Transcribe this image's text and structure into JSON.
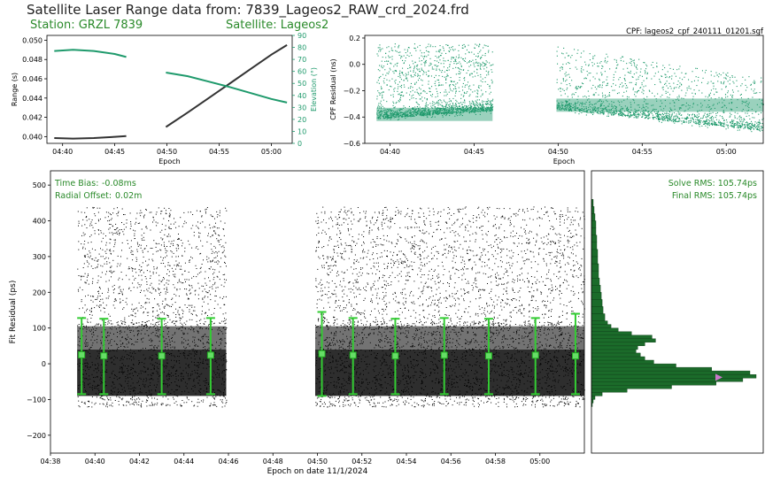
{
  "header": {
    "title": "Satellite Laser Range data from: 7839_Lageos2_RAW_crd_2024.frd",
    "station": "Station: GRZL 7839",
    "satellite": "Satellite: Lageos2",
    "cpf_file": "CPF: lageos2_cpf_240111_01201.sgf"
  },
  "colors": {
    "green": "#1f9a6c",
    "dark_green": "#1b6b2a",
    "label_green": "#2a8a2a",
    "black": "#000000"
  },
  "chart_data": [
    {
      "id": "range-elevation",
      "type": "line",
      "xlabel": "Epoch",
      "ylabel": "Range (s)",
      "y2label": "Elevation (°)",
      "xticks": [
        "04:40",
        "04:45",
        "04:50",
        "04:55",
        "05:00"
      ],
      "yticks": [
        "0.040",
        "0.042",
        "0.044",
        "0.046",
        "0.048",
        "0.050"
      ],
      "y2ticks": [
        "0",
        "10",
        "20",
        "30",
        "40",
        "50",
        "60",
        "70",
        "80",
        "90"
      ],
      "xlim_minutes": [
        278.5,
        302
      ],
      "ylim": [
        0.0393,
        0.0505
      ],
      "y2lim": [
        0,
        90
      ],
      "series": [
        {
          "axis": "left",
          "color": "#333333",
          "points": [
            [
              279.2,
              0.03985
            ],
            [
              281,
              0.0398
            ],
            [
              283,
              0.03985
            ],
            [
              285,
              0.03998
            ],
            [
              286.1,
              0.04005
            ]
          ]
        },
        {
          "axis": "left",
          "color": "#333333",
          "points": [
            [
              289.9,
              0.041
            ],
            [
              292,
              0.0425
            ],
            [
              294,
              0.044
            ],
            [
              296,
              0.0455
            ],
            [
              298,
              0.047
            ],
            [
              300,
              0.0485
            ],
            [
              301.5,
              0.0495
            ]
          ]
        },
        {
          "axis": "right",
          "color": "#1f9a6c",
          "points": [
            [
              279.2,
              77
            ],
            [
              281,
              78
            ],
            [
              283,
              77
            ],
            [
              285,
              74.5
            ],
            [
              286.1,
              72
            ]
          ]
        },
        {
          "axis": "right",
          "color": "#1f9a6c",
          "points": [
            [
              289.9,
              59
            ],
            [
              292,
              56
            ],
            [
              294,
              51.5
            ],
            [
              296,
              47
            ],
            [
              298,
              42
            ],
            [
              300,
              37
            ],
            [
              301.5,
              34
            ]
          ]
        }
      ]
    },
    {
      "id": "cpf-residual",
      "type": "scatter",
      "xlabel": "Epoch",
      "ylabel": "CPF Residual (ns)",
      "xticks": [
        "04:40",
        "04:45",
        "04:50",
        "04:55",
        "05:00"
      ],
      "yticks": [
        "−0.6",
        "−0.4",
        "−0.2",
        "0.0",
        "0.2"
      ],
      "xlim_minutes": [
        278.5,
        302.2
      ],
      "ylim": [
        -0.6,
        0.22
      ],
      "segments": [
        {
          "x_start": 279.2,
          "x_end": 286.1,
          "band_top_start": 0.16,
          "band_top_end": 0.16,
          "band_bottom_start": -0.43,
          "band_bottom_end": -0.37
        },
        {
          "x_start": 289.9,
          "x_end": 302.2,
          "band_top_start": 0.14,
          "band_top_end": -0.1,
          "band_bottom_start": -0.36,
          "band_bottom_end": -0.52
        }
      ],
      "color": "#1f9a6c"
    },
    {
      "id": "fit-residual",
      "type": "scatter",
      "xlabel": "Epoch on date 11/1/2024",
      "ylabel": "Fit Residual (ps)",
      "xticks": [
        "04:38",
        "04:40",
        "04:42",
        "04:44",
        "04:46",
        "04:48",
        "04:50",
        "04:52",
        "04:54",
        "04:56",
        "04:58",
        "05:00"
      ],
      "yticks": [
        "−200",
        "−100",
        "0",
        "100",
        "200",
        "300",
        "400",
        "500"
      ],
      "xlim_minutes": [
        278,
        302
      ],
      "ylim": [
        -250,
        540
      ],
      "annotations": {
        "time_bias": "Time Bias:",
        "time_bias_value": "-0.08ms",
        "radial_offset": "Radial Offset:",
        "radial_offset_value": "0.02m"
      },
      "segments": [
        {
          "x_start": 279.2,
          "x_end": 285.9
        },
        {
          "x_start": 289.9,
          "x_end": 302.0
        }
      ],
      "normal_points": [
        {
          "x": 279.4,
          "mean": 25,
          "low": -85,
          "high": 128
        },
        {
          "x": 280.4,
          "mean": 22,
          "low": -85,
          "high": 126
        },
        {
          "x": 283.0,
          "mean": 22,
          "low": -85,
          "high": 126
        },
        {
          "x": 285.2,
          "mean": 24,
          "low": -85,
          "high": 128
        },
        {
          "x": 290.2,
          "mean": 28,
          "low": -90,
          "high": 145
        },
        {
          "x": 291.6,
          "mean": 24,
          "low": -85,
          "high": 128
        },
        {
          "x": 293.5,
          "mean": 22,
          "low": -85,
          "high": 126
        },
        {
          "x": 295.7,
          "mean": 24,
          "low": -85,
          "high": 128
        },
        {
          "x": 297.7,
          "mean": 22,
          "low": -85,
          "high": 126
        },
        {
          "x": 299.8,
          "mean": 24,
          "low": -85,
          "high": 128
        },
        {
          "x": 301.6,
          "mean": 22,
          "low": -85,
          "high": 140
        }
      ]
    },
    {
      "id": "residual-histogram",
      "type": "bar",
      "orientation": "horizontal",
      "annotations": {
        "solve_rms": "Solve RMS: 105.74ps",
        "final_rms": "Final RMS: 105.74ps"
      },
      "ylim": [
        -250,
        540
      ],
      "bins_ps": [
        -120,
        -110,
        -100,
        -90,
        -80,
        -70,
        -60,
        -50,
        -40,
        -30,
        -20,
        -10,
        0,
        10,
        20,
        30,
        40,
        50,
        60,
        70,
        80,
        90,
        100,
        110,
        120,
        140,
        160,
        180,
        200,
        220,
        240,
        260,
        280,
        300,
        320,
        340,
        360,
        380,
        400,
        420,
        440
      ],
      "counts": [
        1,
        2,
        4,
        12,
        40,
        90,
        140,
        170,
        185,
        178,
        135,
        95,
        70,
        60,
        55,
        50,
        52,
        60,
        72,
        68,
        45,
        30,
        22,
        18,
        15,
        13,
        12,
        11,
        10,
        9,
        8,
        8,
        7,
        7,
        6,
        6,
        5,
        5,
        4,
        3,
        2
      ],
      "color": "#1b6b2a"
    }
  ]
}
